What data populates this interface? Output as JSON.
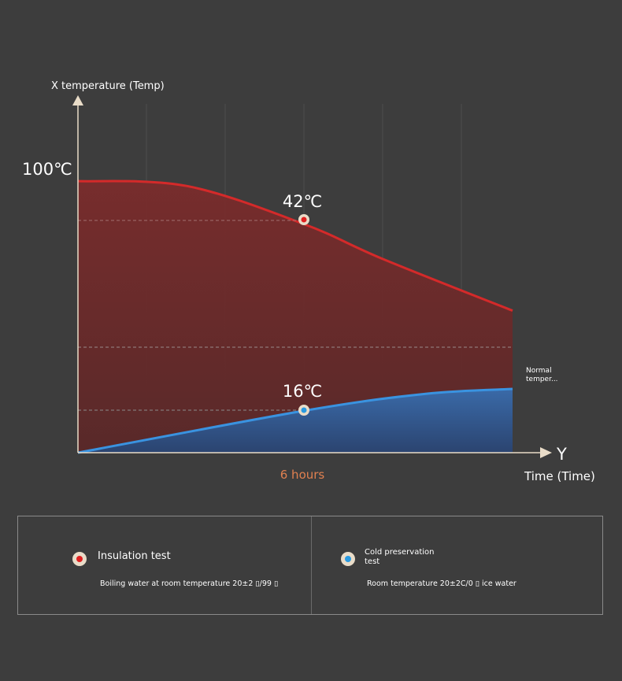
{
  "chart_data": {
    "type": "area",
    "y_axis_label": "X temperature (Temp)",
    "x_axis_letter": "Y",
    "x_axis_label": "Time (Time)",
    "x_marker_label": "6 hours",
    "reference_line_label": "Normal temper...",
    "top_value_label": "100℃",
    "series": [
      {
        "name": "Insulation test",
        "color": "#d42a2a",
        "fill": "#6b2a2a",
        "point_label": "42℃",
        "shape": [
          [
            0,
            0.784
          ],
          [
            0.25,
            0.77
          ],
          [
            0.52,
            0.66
          ],
          [
            0.7,
            0.56
          ],
          [
            1.0,
            0.41
          ]
        ]
      },
      {
        "name": "Cold preservation test",
        "color": "#3a93e0",
        "fill": "#2d4f7c",
        "point_label": "16℃",
        "shape": [
          [
            0,
            0.0
          ],
          [
            0.52,
            0.121
          ],
          [
            0.8,
            0.17
          ],
          [
            1.0,
            0.184
          ]
        ]
      }
    ]
  },
  "legend": {
    "left": {
      "title": "Insulation test",
      "desc": "Boiling water at room temperature 20±2 ▯/99 ▯",
      "dot_color": "#e02020"
    },
    "right": {
      "title": "Cold preservation test",
      "desc": "Room temperature 20±2C/0 ▯ ice water",
      "dot_color": "#2a9ae0"
    }
  }
}
